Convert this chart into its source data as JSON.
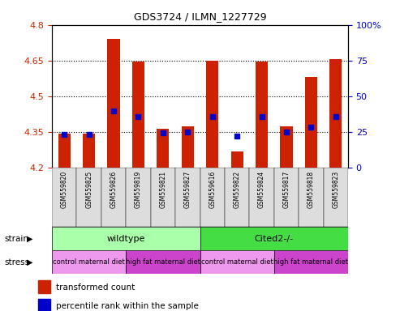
{
  "title": "GDS3724 / ILMN_1227729",
  "samples": [
    "GSM559820",
    "GSM559825",
    "GSM559826",
    "GSM559819",
    "GSM559821",
    "GSM559827",
    "GSM559616",
    "GSM559822",
    "GSM559824",
    "GSM559817",
    "GSM559818",
    "GSM559823"
  ],
  "bar_values": [
    4.345,
    4.345,
    4.74,
    4.645,
    4.365,
    4.375,
    4.65,
    4.27,
    4.645,
    4.375,
    4.58,
    4.655
  ],
  "percentile_values": [
    4.342,
    4.342,
    4.44,
    4.415,
    4.348,
    4.352,
    4.415,
    4.335,
    4.415,
    4.35,
    4.37,
    4.415
  ],
  "ymin": 4.2,
  "ymax": 4.8,
  "y_ticks": [
    4.2,
    4.35,
    4.5,
    4.65,
    4.8
  ],
  "right_y_ticks": [
    0,
    25,
    50,
    75,
    100
  ],
  "bar_color": "#cc2200",
  "percentile_color": "#0000cc",
  "bg_color": "#ffffff",
  "strain_wildtype": {
    "label": "wildtype",
    "start": 0,
    "end": 6,
    "color": "#aaffaa"
  },
  "strain_cited": {
    "label": "Cited2-/-",
    "start": 6,
    "end": 12,
    "color": "#44dd44"
  },
  "stress_groups": [
    {
      "label": "control maternal diet",
      "start": 0,
      "end": 3,
      "color": "#ee99ee"
    },
    {
      "label": "high fat maternal diet",
      "start": 3,
      "end": 6,
      "color": "#cc44cc"
    },
    {
      "label": "control maternal diet",
      "start": 6,
      "end": 9,
      "color": "#ee99ee"
    },
    {
      "label": "high fat maternal diet",
      "start": 9,
      "end": 12,
      "color": "#cc44cc"
    }
  ],
  "legend_items": [
    {
      "label": "transformed count",
      "color": "#cc2200"
    },
    {
      "label": "percentile rank within the sample",
      "color": "#0000cc"
    }
  ],
  "strain_label": "strain",
  "stress_label": "stress",
  "tick_label_color_left": "#cc2200",
  "tick_label_color_right": "#0000cc"
}
